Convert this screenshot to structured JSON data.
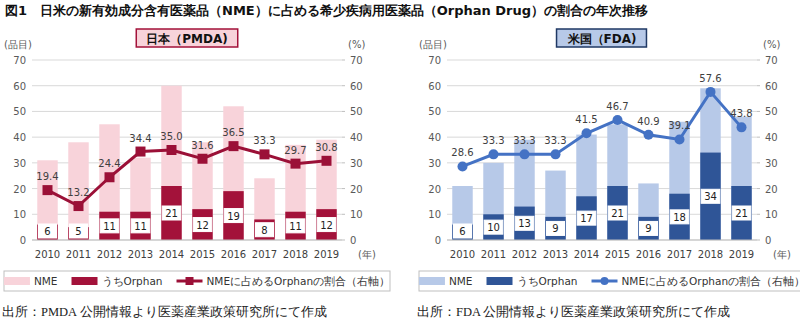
{
  "title": "図1　日米の新有効成分含有医薬品（NME）に占める希少疾病用医薬品（Orphan Drug）の割合の年次推移",
  "chart_data": [
    {
      "type": "bar",
      "title": "日本（PMDA)",
      "categories": [
        "2010",
        "2011",
        "2012",
        "2013",
        "2014",
        "2015",
        "2016",
        "2017",
        "2018",
        "2019"
      ],
      "series": [
        {
          "name": "NME",
          "type": "bar",
          "color": "#f8d3da",
          "values": [
            31,
            38,
            45,
            32,
            60,
            38,
            52,
            24,
            37,
            39
          ]
        },
        {
          "name": "うちOrphan",
          "type": "bar",
          "color": "#a3123a",
          "data_labels": true,
          "values": [
            6,
            5,
            11,
            11,
            21,
            12,
            19,
            8,
            11,
            12
          ]
        },
        {
          "name": "NMEに占めるOrphanの割合（右軸）",
          "type": "line",
          "axis": "y2",
          "color": "#9b1037",
          "marker": "square",
          "data_labels": true,
          "values": [
            19.4,
            13.2,
            24.4,
            34.4,
            35.0,
            31.6,
            36.5,
            33.3,
            29.7,
            30.8
          ],
          "value_labels": [
            "19.4",
            "13.2",
            "24.4",
            "34.4",
            "35.0",
            "31.6",
            "36.5",
            "33.3",
            "29.7",
            "30.8"
          ]
        }
      ],
      "stacked": false,
      "ylim": [
        0,
        70
      ],
      "yticks": [
        0,
        10,
        20,
        30,
        40,
        50,
        60,
        70
      ],
      "y2lim": [
        0,
        70
      ],
      "y2ticks": [
        0,
        10,
        20,
        30,
        40,
        50,
        60,
        70
      ],
      "ylabel": "(品目)",
      "y2label": "(%)",
      "xlabel": "(年)",
      "grid": true,
      "legend": "bottom",
      "annotations": [
        "出所：PMDA 公開情報より医薬産業政策研究所にて作成"
      ]
    },
    {
      "type": "bar",
      "title": "米国（FDA)",
      "categories": [
        "2010",
        "2011",
        "2012",
        "2013",
        "2014",
        "2015",
        "2016",
        "2017",
        "2018",
        "2019"
      ],
      "series": [
        {
          "name": "NME",
          "type": "bar",
          "color": "#b7c9e8",
          "values": [
            21,
            30,
            39,
            27,
            41,
            45,
            22,
            46,
            59,
            48
          ]
        },
        {
          "name": "うちOrphan",
          "type": "bar",
          "color": "#2f5597",
          "data_labels": true,
          "values": [
            6,
            10,
            13,
            9,
            17,
            21,
            9,
            18,
            34,
            21
          ]
        },
        {
          "name": "NMEに占めるOrphanの割合（右軸）",
          "type": "line",
          "axis": "y2",
          "color": "#4472c4",
          "marker": "circle",
          "data_labels": true,
          "values": [
            28.6,
            33.3,
            33.3,
            33.3,
            41.5,
            46.7,
            40.9,
            39.1,
            57.6,
            43.8
          ]
        }
      ],
      "stacked": false,
      "ylim": [
        0,
        70
      ],
      "yticks": [
        0,
        10,
        20,
        30,
        40,
        50,
        60,
        70
      ],
      "y2lim": [
        0,
        70
      ],
      "y2ticks": [
        0,
        10,
        20,
        30,
        40,
        50,
        60,
        70
      ],
      "ylabel": "(品目)",
      "y2label": "(%)",
      "xlabel": "(年)",
      "grid": true,
      "legend": "bottom",
      "annotations": [
        "出所：FDA 公開情報より医薬産業政策研究所にて作成"
      ]
    }
  ]
}
